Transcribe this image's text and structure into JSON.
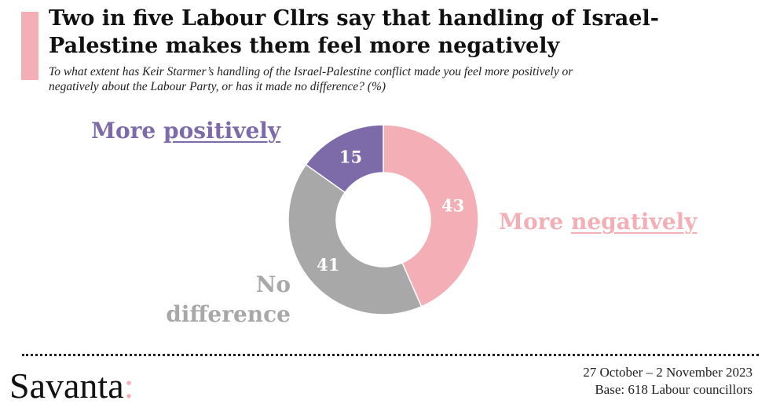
{
  "title": "Two in five Labour Cllrs say that handling of Israel-\nPalestine makes them feel more negatively",
  "subtitle": "To what extent has Keir Starmer’s handling of the Israel-Palestine conflict made you feel more positively or\nnegatively about the Labour Party, or has it made no difference? (%)",
  "labels": {
    "positive_prefix": "More ",
    "positive_word": "positively",
    "negative_prefix": "More ",
    "negative_word": "negatively",
    "nodiff_line1": "No",
    "nodiff_line2": "difference"
  },
  "footer": {
    "date": "27 October – 2 November 2023",
    "base": "Base: 618 Labour councillors"
  },
  "logo": {
    "text": "Savanta",
    "mark": ":"
  },
  "colors": {
    "accent": "#f4aeb5",
    "negative": "#f4aeb5",
    "nodiff": "#a8a8a8",
    "positive": "#7d6aa8"
  },
  "chart_data": {
    "type": "pie",
    "donut": true,
    "title": "Two in five Labour Cllrs say that handling of Israel-Palestine makes them feel more negatively",
    "slices": [
      {
        "label": "More negatively",
        "value": 43,
        "color": "#f4aeb5"
      },
      {
        "label": "No difference",
        "value": 41,
        "color": "#a8a8a8"
      },
      {
        "label": "More positively",
        "value": 15,
        "color": "#7d6aa8"
      }
    ],
    "legend": "none",
    "data_labels": true
  }
}
